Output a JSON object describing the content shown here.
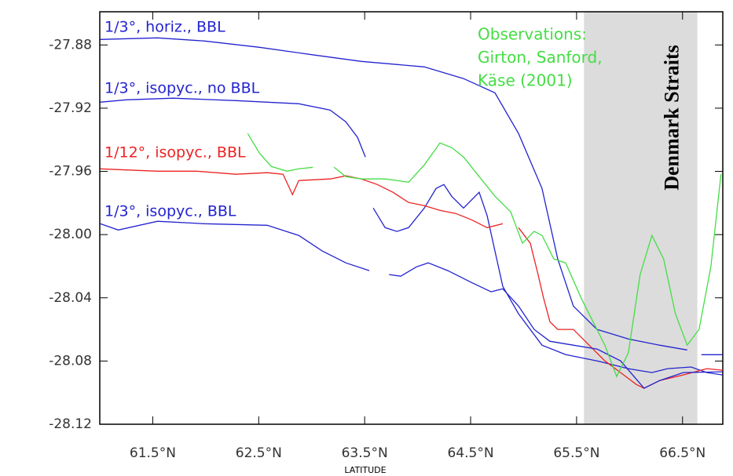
{
  "chart_data": {
    "type": "line",
    "xlabel": "LATITUDE",
    "xlim": [
      61.0,
      66.88
    ],
    "ylim": [
      -27.859,
      -28.12
    ],
    "xticks": [
      {
        "value": 61.5,
        "label": "61.5°N"
      },
      {
        "value": 62.5,
        "label": "62.5°N"
      },
      {
        "value": 63.5,
        "label": "63.5°N"
      },
      {
        "value": 64.5,
        "label": "64.5°N"
      },
      {
        "value": 65.5,
        "label": "65.5°N"
      },
      {
        "value": 66.5,
        "label": "66.5°N"
      }
    ],
    "yticks": [
      -27.88,
      -27.92,
      -27.96,
      {
        "value": -28.0,
        "label": "-28.00"
      },
      -28.04,
      -28.08,
      -28.12
    ],
    "shade": {
      "x": [
        65.57,
        66.64
      ],
      "label": "Denmark Straits",
      "color": "#dcdcdc"
    },
    "annotation": {
      "lines": [
        "Observations:",
        "Girton, Sanford,",
        "Käse (2001)"
      ],
      "color": "#44dd44"
    },
    "series": [
      {
        "name": "1/3°, horiz., BBL",
        "color": "#2323d0",
        "x": [
          61.004,
          61.544,
          61.989,
          62.507,
          63.026,
          63.47,
          64.063,
          64.433,
          64.73,
          64.952,
          65.174,
          65.322,
          65.47,
          65.693,
          65.989,
          66.285,
          66.544,
          66.61,
          66.678,
          66.878
        ],
        "values": [
          -27.8765,
          -27.8755,
          -27.8775,
          -27.8815,
          -27.8864,
          -27.8904,
          -27.8939,
          -27.9013,
          -27.9103,
          -27.936,
          -27.9708,
          -28.0154,
          -28.0452,
          -28.06,
          -28.066,
          -28.07,
          -28.073,
          null,
          -28.076,
          -28.076
        ]
      },
      {
        "name": "1/3°, isopyc., no BBL",
        "color": "#2323d0",
        "x": [
          61.004,
          61.248,
          61.693,
          62.285,
          62.878,
          63.174,
          63.322,
          63.433,
          63.507,
          63.544,
          63.581,
          63.693,
          63.804,
          63.915,
          64.063,
          64.174,
          64.248,
          64.322,
          64.433,
          64.507,
          64.581,
          64.656,
          64.73,
          64.804,
          64.952,
          65.174,
          65.396,
          65.693,
          65.989,
          66.211,
          66.359,
          66.581,
          66.73,
          66.878
        ],
        "values": [
          -27.9162,
          -27.9147,
          -27.9137,
          -27.9152,
          -27.9172,
          -27.9212,
          -27.9286,
          -27.9385,
          -27.9509,
          null,
          -27.9832,
          -27.9956,
          -27.998,
          -27.9956,
          -27.9832,
          -27.9708,
          -27.9683,
          -27.9758,
          -27.9832,
          -27.9782,
          -27.9732,
          -27.9881,
          -28.0104,
          -28.0328,
          -28.0501,
          -28.07,
          -28.0759,
          -28.0799,
          -28.0848,
          -28.0873,
          -28.0848,
          -28.0838,
          -28.0873,
          -28.0888
        ]
      },
      {
        "name": "1/12°, isopyc., BBL",
        "color": "#ee2222",
        "x": [
          61.004,
          61.544,
          61.915,
          62.285,
          62.581,
          62.73,
          62.819,
          62.878,
          63.174,
          63.322,
          63.47,
          63.619,
          63.767,
          63.915,
          64.063,
          64.211,
          64.359,
          64.507,
          64.656,
          64.804,
          64.88,
          64.952,
          65.063,
          65.137,
          65.189,
          65.248,
          65.322,
          65.47,
          65.619,
          65.767,
          65.915,
          66.063,
          66.137,
          66.285,
          66.507,
          66.73,
          66.878
        ],
        "values": [
          -27.9584,
          -27.9599,
          -27.9599,
          -27.9618,
          -27.9608,
          -27.9618,
          -27.9747,
          -27.9658,
          -27.9648,
          -27.9628,
          -27.9648,
          -27.9683,
          -27.9732,
          -27.9797,
          -27.9817,
          -27.9847,
          -27.9866,
          -27.9906,
          -27.9956,
          -27.9931,
          null,
          -27.9956,
          -28.0055,
          -28.0253,
          -28.0402,
          -28.0551,
          -28.06,
          -28.06,
          -28.07,
          -28.0799,
          -28.0873,
          -28.0948,
          -28.0972,
          -28.0923,
          -28.0888,
          -28.0848,
          -28.0858
        ]
      },
      {
        "name": "1/3°, isopyc., BBL",
        "color": "#2323d0",
        "x": [
          61.004,
          61.174,
          61.544,
          61.989,
          62.581,
          62.878,
          63.1,
          63.322,
          63.544,
          63.64,
          63.73,
          63.841,
          63.989,
          64.1,
          64.285,
          64.507,
          64.693,
          64.804,
          64.952,
          65.1,
          65.248,
          65.47,
          65.693,
          65.915,
          66.137,
          66.285,
          66.507,
          66.878
        ],
        "values": [
          -27.9931,
          -27.9971,
          -27.9916,
          -27.9931,
          -27.9941,
          -28.0005,
          -28.0104,
          -28.0179,
          -28.0228,
          null,
          -28.0253,
          -28.0263,
          -28.0204,
          -28.0179,
          -28.0228,
          -28.0303,
          -28.0362,
          -28.0343,
          -28.0452,
          -28.06,
          -28.0675,
          -28.07,
          -28.0724,
          -28.0799,
          -28.0972,
          -28.0923,
          -28.0873,
          -28.0868
        ]
      },
      {
        "color": "#44dd44",
        "x": [
          62.396,
          62.507,
          62.619,
          62.767,
          62.878,
          63.011,
          63.11,
          63.211,
          63.322,
          63.47,
          63.693,
          63.915,
          64.063,
          64.211,
          64.322,
          64.433,
          64.581,
          64.73,
          64.878,
          64.989,
          65.1,
          65.174,
          65.285,
          65.396,
          65.544,
          65.767,
          65.878,
          65.989,
          66.1,
          66.211,
          66.322,
          66.433,
          66.544,
          66.656,
          66.767,
          66.863
        ],
        "values": [
          -27.936,
          -27.9484,
          -27.9569,
          -27.9599,
          -27.9584,
          -27.9574,
          null,
          -27.9574,
          -27.9633,
          -27.9648,
          -27.9648,
          -27.9668,
          -27.9559,
          -27.942,
          -27.945,
          -27.9509,
          -27.9633,
          -27.9757,
          -27.9856,
          -28.0055,
          -27.998,
          -28.0005,
          -28.0154,
          -28.0179,
          -28.0402,
          -28.07,
          -28.0898,
          -28.0749,
          -28.0253,
          -28.0005,
          -28.0154,
          -28.0501,
          -28.07,
          -28.06,
          -28.0204,
          -27.9618
        ]
      }
    ]
  }
}
